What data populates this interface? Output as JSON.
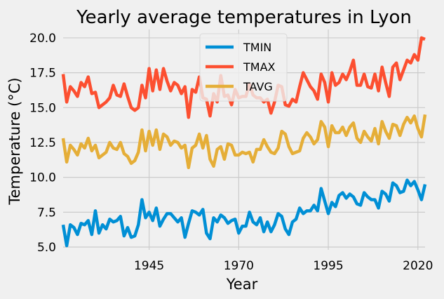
{
  "chart_data": {
    "type": "line",
    "title": "Yearly average temperatures in Lyon",
    "xlabel": "Year",
    "ylabel": "Temperature (°C)",
    "xlim": [
      1921,
      2022
    ],
    "ylim": [
      4.8,
      20.6
    ],
    "xticks": [
      1945,
      1970,
      1995,
      2020
    ],
    "yticks": [
      5.0,
      7.5,
      10.0,
      12.5,
      15.0,
      17.5,
      20.0
    ],
    "grid": true,
    "legend_position": "top-center",
    "x": [
      1921,
      1922,
      1923,
      1924,
      1925,
      1926,
      1927,
      1928,
      1929,
      1930,
      1931,
      1932,
      1933,
      1934,
      1935,
      1936,
      1937,
      1938,
      1939,
      1940,
      1941,
      1942,
      1943,
      1944,
      1945,
      1946,
      1947,
      1948,
      1949,
      1950,
      1951,
      1952,
      1953,
      1954,
      1955,
      1956,
      1957,
      1958,
      1959,
      1960,
      1961,
      1962,
      1963,
      1964,
      1965,
      1966,
      1967,
      1968,
      1969,
      1970,
      1971,
      1972,
      1973,
      1974,
      1975,
      1976,
      1977,
      1978,
      1979,
      1980,
      1981,
      1982,
      1983,
      1984,
      1985,
      1986,
      1987,
      1988,
      1989,
      1990,
      1991,
      1992,
      1993,
      1994,
      1995,
      1996,
      1997,
      1998,
      1999,
      2000,
      2001,
      2002,
      2003,
      2004,
      2005,
      2006,
      2007,
      2008,
      2009,
      2010,
      2011,
      2012,
      2013,
      2014,
      2015,
      2016,
      2017,
      2018,
      2019,
      2020,
      2021,
      2022
    ],
    "series": [
      {
        "name": "TMIN",
        "color": "#008fd5",
        "values": [
          6.6,
          5.1,
          6.6,
          6.4,
          5.9,
          6.7,
          6.6,
          6.9,
          5.9,
          7.6,
          6.0,
          6.6,
          6.3,
          7.0,
          6.8,
          6.9,
          7.2,
          5.8,
          6.4,
          5.7,
          5.8,
          6.6,
          8.4,
          7.1,
          7.5,
          6.9,
          7.8,
          6.5,
          7.0,
          7.4,
          7.4,
          7.1,
          6.8,
          7.1,
          5.7,
          6.7,
          7.6,
          7.5,
          7.3,
          7.7,
          6.0,
          5.6,
          7.1,
          6.8,
          7.3,
          7.1,
          6.7,
          6.9,
          7.0,
          6.0,
          6.5,
          6.5,
          7.5,
          6.8,
          6.6,
          7.1,
          6.1,
          6.8,
          6.1,
          6.6,
          7.4,
          7.2,
          6.3,
          5.9,
          6.8,
          7.0,
          7.8,
          7.4,
          7.6,
          7.6,
          8.0,
          7.6,
          9.2,
          8.3,
          7.4,
          8.2,
          7.9,
          8.7,
          8.9,
          8.5,
          8.8,
          8.6,
          8.1,
          8.0,
          8.9,
          8.6,
          8.4,
          8.4,
          7.8,
          9.0,
          8.8,
          8.3,
          9.6,
          9.4,
          8.9,
          9.0,
          9.8,
          9.4,
          9.7,
          9.1,
          8.4,
          9.5
        ]
      },
      {
        "name": "TMAX",
        "color": "#fc4f30",
        "values": [
          17.4,
          15.4,
          16.5,
          16.2,
          15.8,
          16.8,
          16.5,
          17.2,
          16.0,
          16.1,
          15.0,
          15.2,
          15.4,
          15.7,
          16.6,
          15.9,
          15.8,
          16.7,
          15.8,
          15.0,
          14.8,
          15.0,
          16.6,
          15.7,
          17.8,
          16.2,
          17.7,
          16.3,
          17.8,
          16.9,
          16.2,
          16.8,
          16.6,
          16.0,
          16.5,
          14.3,
          16.3,
          16.1,
          17.2,
          15.7,
          15.6,
          14.4,
          16.0,
          15.4,
          17.3,
          15.8,
          15.9,
          15.2,
          16.3,
          15.7,
          15.8,
          15.8,
          16.7,
          15.9,
          15.7,
          15.7,
          15.4,
          15.6,
          14.6,
          15.4,
          16.6,
          16.5,
          15.2,
          15.1,
          15.6,
          15.4,
          16.5,
          17.5,
          17.0,
          16.5,
          16.2,
          15.6,
          17.4,
          16.8,
          15.4,
          17.5,
          16.6,
          16.8,
          17.4,
          17.0,
          17.6,
          18.4,
          16.6,
          16.6,
          17.4,
          16.5,
          16.4,
          17.4,
          16.2,
          17.9,
          16.8,
          15.8,
          17.9,
          18.2,
          17.0,
          17.7,
          18.4,
          18.2,
          18.8,
          18.4,
          20.0,
          19.9
        ]
      },
      {
        "name": "TAVG",
        "color": "#e5ae38",
        "values": [
          12.8,
          11.1,
          12.3,
          12.0,
          11.6,
          12.4,
          12.1,
          12.8,
          11.9,
          12.3,
          11.4,
          11.6,
          11.8,
          12.5,
          12.1,
          12.0,
          12.5,
          11.7,
          11.5,
          11.0,
          11.2,
          11.8,
          13.4,
          11.9,
          13.3,
          12.3,
          13.4,
          12.0,
          13.1,
          12.9,
          12.3,
          12.6,
          12.5,
          12.1,
          12.3,
          10.7,
          12.1,
          12.3,
          13.1,
          12.1,
          13.0,
          11.3,
          10.8,
          12.0,
          12.2,
          11.3,
          12.4,
          12.3,
          11.6,
          11.6,
          11.8,
          11.7,
          11.8,
          11.1,
          12.0,
          12.0,
          12.7,
          12.2,
          11.8,
          11.7,
          12.1,
          13.3,
          13.1,
          12.2,
          11.7,
          11.8,
          11.9,
          12.8,
          13.2,
          12.9,
          12.4,
          12.7,
          14.0,
          13.6,
          12.2,
          13.7,
          13.2,
          13.2,
          13.6,
          13.0,
          13.6,
          13.9,
          12.8,
          12.5,
          13.3,
          12.9,
          12.6,
          13.5,
          12.4,
          14.0,
          13.3,
          12.8,
          13.8,
          13.7,
          13.0,
          13.8,
          14.3,
          13.9,
          14.4,
          13.5,
          12.9,
          14.5
        ]
      }
    ]
  }
}
